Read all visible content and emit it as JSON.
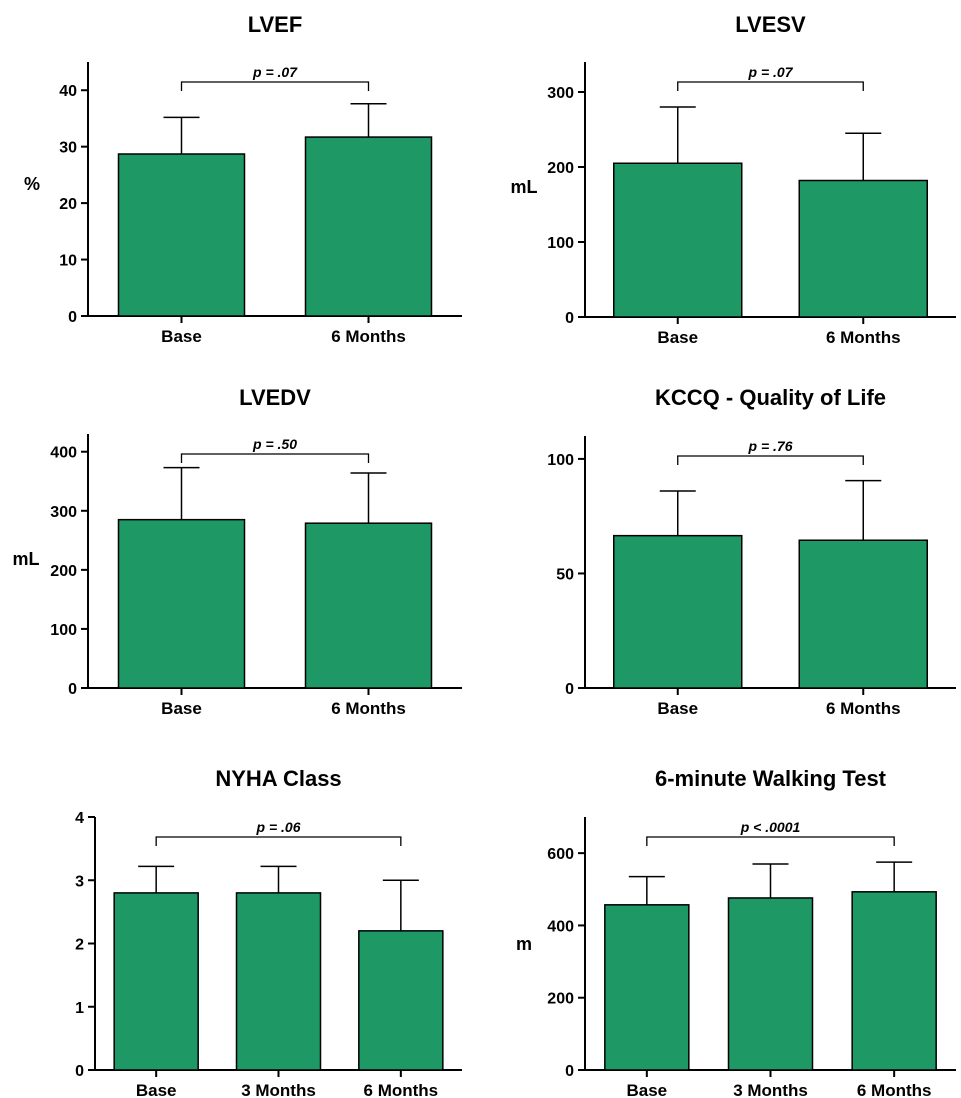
{
  "figure": {
    "bar_color": "#1e9966",
    "bar_stroke": "#000000",
    "axis_color": "#000000"
  },
  "chart_data": [
    {
      "type": "bar",
      "title": "LVEF",
      "ylabel": "%",
      "ylim": [
        0,
        45
      ],
      "yticks": [
        0,
        10,
        20,
        30,
        40
      ],
      "categories": [
        "Base",
        "6 Months"
      ],
      "values": [
        28.7,
        31.7
      ],
      "error_upper": [
        35.2,
        37.6
      ],
      "pvalue": "p = .07",
      "bracket": [
        0,
        1
      ],
      "grid": false
    },
    {
      "type": "bar",
      "title": "LVESV",
      "ylabel": "mL",
      "ylim": [
        0,
        340
      ],
      "yticks": [
        0,
        100,
        200,
        300
      ],
      "categories": [
        "Base",
        "6 Months"
      ],
      "values": [
        205,
        182
      ],
      "error_upper": [
        280,
        245
      ],
      "pvalue": "p = .07",
      "bracket": [
        0,
        1
      ],
      "grid": false
    },
    {
      "type": "bar",
      "title": "LVEDV",
      "ylabel": "mL",
      "ylim": [
        0,
        430
      ],
      "yticks": [
        0,
        100,
        200,
        300,
        400
      ],
      "categories": [
        "Base",
        "6 Months"
      ],
      "values": [
        285,
        279
      ],
      "error_upper": [
        373,
        364
      ],
      "pvalue": "p = .50",
      "bracket": [
        0,
        1
      ],
      "grid": false
    },
    {
      "type": "bar",
      "title": "KCCQ - Quality of Life",
      "ylabel": "",
      "ylim": [
        0,
        110
      ],
      "yticks": [
        0,
        50,
        100
      ],
      "categories": [
        "Base",
        "6 Months"
      ],
      "values": [
        66.5,
        64.5
      ],
      "error_upper": [
        86,
        90.5
      ],
      "pvalue": "p = .76",
      "bracket": [
        0,
        1
      ],
      "grid": false
    },
    {
      "type": "bar",
      "title": "NYHA Class",
      "ylabel": "",
      "ylim": [
        0,
        4
      ],
      "yticks": [
        0,
        1,
        2,
        3,
        4
      ],
      "categories": [
        "Base",
        "3 Months",
        "6 Months"
      ],
      "values": [
        2.8,
        2.8,
        2.2
      ],
      "error_upper": [
        3.22,
        3.22,
        3.0
      ],
      "pvalue": "p = .06",
      "bracket": [
        0,
        2
      ],
      "grid": false
    },
    {
      "type": "bar",
      "title": "6-minute Walking Test",
      "ylabel": "m",
      "ylim": [
        0,
        700
      ],
      "yticks": [
        0,
        200,
        400,
        600
      ],
      "categories": [
        "Base",
        "3 Months",
        "6 Months"
      ],
      "values": [
        457,
        476,
        493
      ],
      "error_upper": [
        535,
        570,
        575
      ],
      "pvalue": "p < .0001",
      "bracket": [
        0,
        2
      ],
      "grid": false
    }
  ]
}
